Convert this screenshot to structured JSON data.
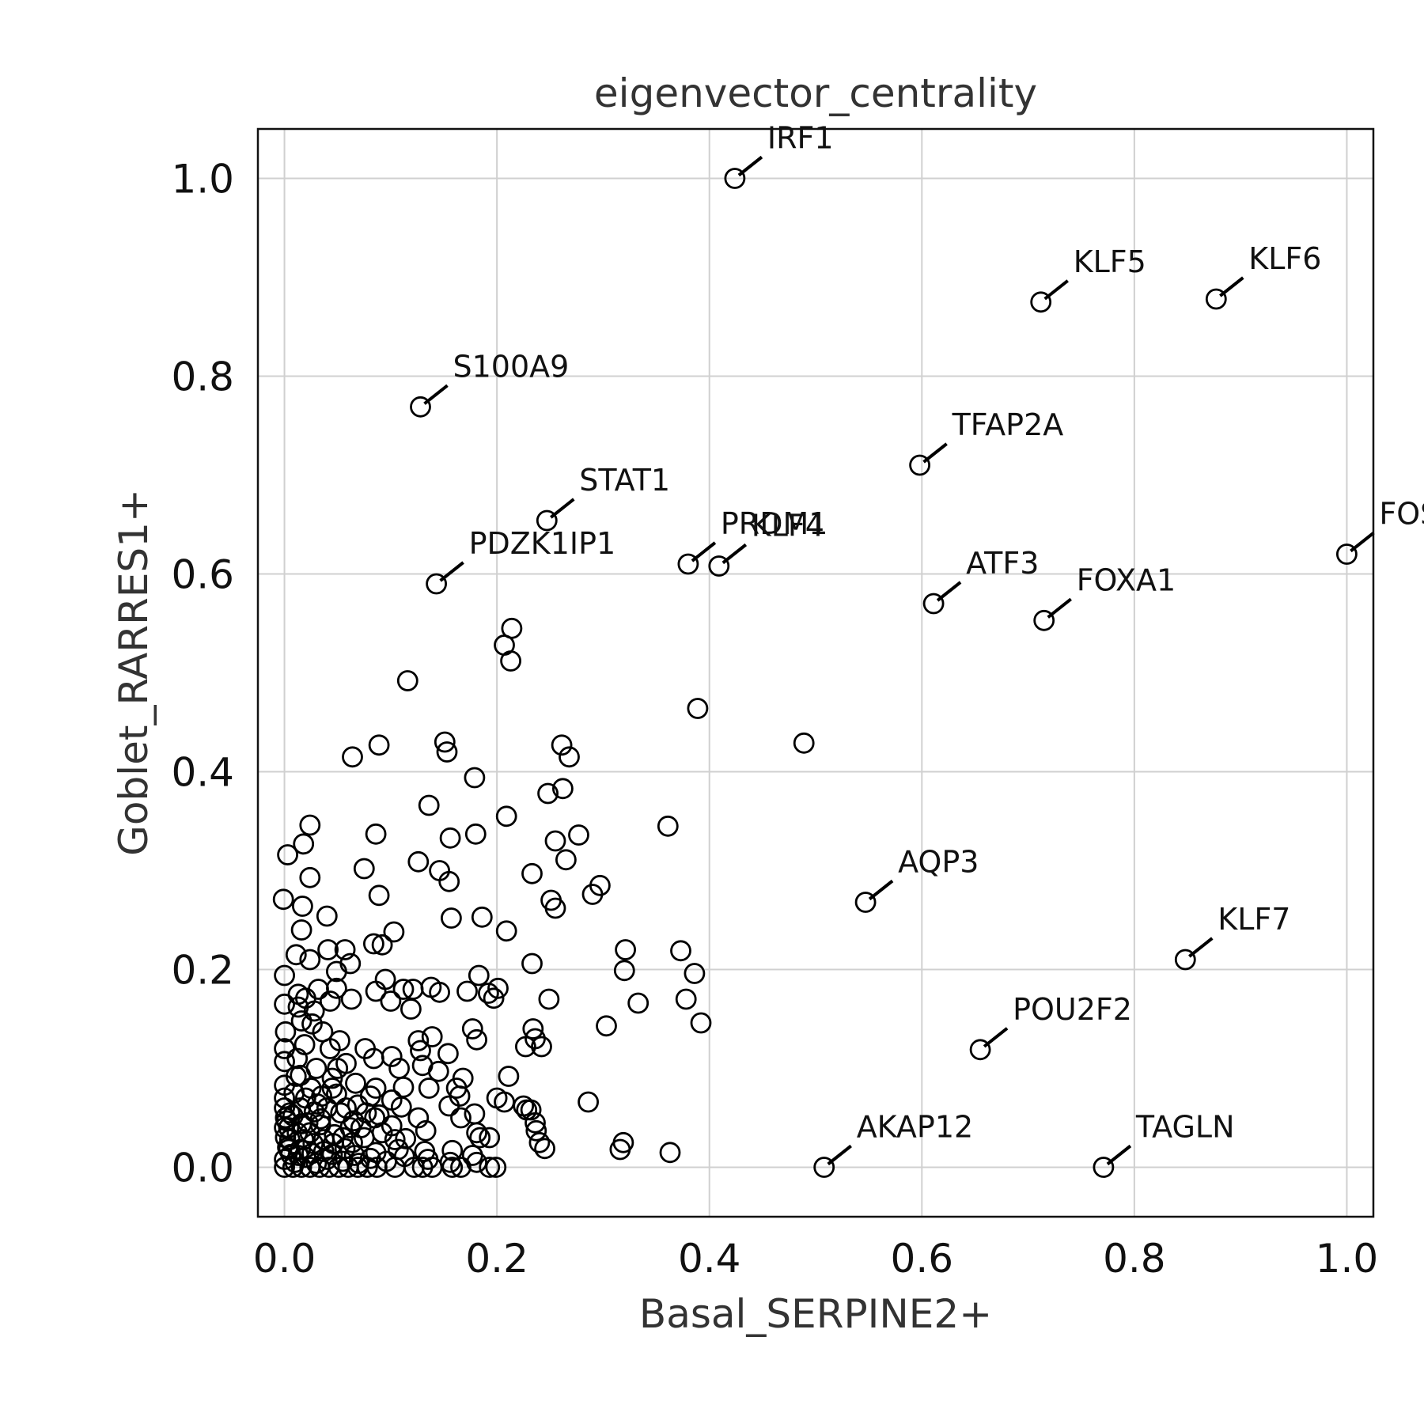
{
  "chart_data": {
    "type": "scatter",
    "title": "eigenvector_centrality",
    "xlabel": "Basal_SERPINE2+",
    "ylabel": "Goblet_RARRES1+",
    "xlim": [
      -0.025,
      1.025
    ],
    "ylim": [
      -0.05,
      1.05
    ],
    "xticks": [
      "0.0",
      "0.2",
      "0.4",
      "0.6",
      "0.8",
      "1.0"
    ],
    "yticks": [
      "0.0",
      "0.2",
      "0.4",
      "0.6",
      "0.8",
      "1.0"
    ],
    "grid": true,
    "marker": "open-circle",
    "labeled_points": [
      {
        "label": "IRF1",
        "x": 0.424,
        "y": 1.0
      },
      {
        "label": "KLF5",
        "x": 0.712,
        "y": 0.875
      },
      {
        "label": "KLF6",
        "x": 0.877,
        "y": 0.878
      },
      {
        "label": "S100A9",
        "x": 0.128,
        "y": 0.769
      },
      {
        "label": "TFAP2A",
        "x": 0.598,
        "y": 0.71
      },
      {
        "label": "STAT1",
        "x": 0.247,
        "y": 0.654
      },
      {
        "label": "FOS",
        "x": 1.0,
        "y": 0.62
      },
      {
        "label": "PRDM1",
        "x": 0.38,
        "y": 0.61
      },
      {
        "label": "KLF4",
        "x": 0.409,
        "y": 0.608
      },
      {
        "label": "PDZK1IP1",
        "x": 0.143,
        "y": 0.59
      },
      {
        "label": "ATF3",
        "x": 0.611,
        "y": 0.57
      },
      {
        "label": "FOXA1",
        "x": 0.715,
        "y": 0.553
      },
      {
        "label": "AQP3",
        "x": 0.547,
        "y": 0.268
      },
      {
        "label": "KLF7",
        "x": 0.848,
        "y": 0.21
      },
      {
        "label": "POU2F2",
        "x": 0.655,
        "y": 0.119
      },
      {
        "label": "AKAP12",
        "x": 0.508,
        "y": 0.0
      },
      {
        "label": "TAGLN",
        "x": 0.771,
        "y": 0.0
      }
    ],
    "points": [
      [
        0.389,
        0.464
      ],
      [
        0.489,
        0.429
      ],
      [
        0.214,
        0.545
      ],
      [
        0.207,
        0.528
      ],
      [
        0.213,
        0.512
      ],
      [
        0.116,
        0.492
      ],
      [
        0.064,
        0.415
      ],
      [
        0.089,
        0.427
      ],
      [
        0.151,
        0.43
      ],
      [
        0.153,
        0.42
      ],
      [
        0.261,
        0.427
      ],
      [
        0.268,
        0.415
      ],
      [
        0.179,
        0.394
      ],
      [
        0.262,
        0.383
      ],
      [
        0.248,
        0.378
      ],
      [
        0.136,
        0.366
      ],
      [
        0.361,
        0.345
      ],
      [
        0.209,
        0.355
      ],
      [
        0.024,
        0.346
      ],
      [
        0.086,
        0.337
      ],
      [
        0.18,
        0.337
      ],
      [
        0.156,
        0.333
      ],
      [
        0.277,
        0.336
      ],
      [
        0.255,
        0.33
      ],
      [
        0.018,
        0.327
      ],
      [
        0.003,
        0.316
      ],
      [
        0.126,
        0.309
      ],
      [
        0.265,
        0.311
      ],
      [
        0.075,
        0.302
      ],
      [
        0.146,
        0.3
      ],
      [
        0.233,
        0.297
      ],
      [
        0.155,
        0.289
      ],
      [
        0.024,
        0.293
      ],
      [
        0.297,
        0.285
      ],
      [
        0.29,
        0.276
      ],
      [
        0.089,
        0.275
      ],
      [
        -0.001,
        0.271
      ],
      [
        0.251,
        0.27
      ],
      [
        0.255,
        0.262
      ],
      [
        0.017,
        0.264
      ],
      [
        0.04,
        0.254
      ],
      [
        0.157,
        0.252
      ],
      [
        0.186,
        0.253
      ],
      [
        0.209,
        0.239
      ],
      [
        0.103,
        0.238
      ],
      [
        0.016,
        0.24
      ],
      [
        0.084,
        0.226
      ],
      [
        0.092,
        0.225
      ],
      [
        0.321,
        0.22
      ],
      [
        0.373,
        0.219
      ],
      [
        0.057,
        0.22
      ],
      [
        0.041,
        0.22
      ],
      [
        0.011,
        0.215
      ],
      [
        0.024,
        0.21
      ],
      [
        0.062,
        0.206
      ],
      [
        0.233,
        0.206
      ],
      [
        0.32,
        0.199
      ],
      [
        0.386,
        0.196
      ],
      [
        0.049,
        0.198
      ],
      [
        0.183,
        0.194
      ],
      [
        0.095,
        0.19
      ],
      [
        0.0,
        0.194
      ],
      [
        0.013,
        0.175
      ],
      [
        0.032,
        0.18
      ],
      [
        0.049,
        0.181
      ],
      [
        0.086,
        0.178
      ],
      [
        0.112,
        0.18
      ],
      [
        0.121,
        0.18
      ],
      [
        0.138,
        0.182
      ],
      [
        0.146,
        0.177
      ],
      [
        0.172,
        0.178
      ],
      [
        0.192,
        0.176
      ],
      [
        0.201,
        0.181
      ],
      [
        0.197,
        0.171
      ],
      [
        0.249,
        0.17
      ],
      [
        0.333,
        0.166
      ],
      [
        0.378,
        0.17
      ],
      [
        0.063,
        0.17
      ],
      [
        0.02,
        0.171
      ],
      [
        0.043,
        0.168
      ],
      [
        0.1,
        0.168
      ],
      [
        0.0,
        0.165
      ],
      [
        0.013,
        0.162
      ],
      [
        0.028,
        0.158
      ],
      [
        0.119,
        0.16
      ],
      [
        0.016,
        0.148
      ],
      [
        0.026,
        0.145
      ],
      [
        0.392,
        0.146
      ],
      [
        0.303,
        0.143
      ],
      [
        0.177,
        0.14
      ],
      [
        0.234,
        0.14
      ],
      [
        0.001,
        0.137
      ],
      [
        0.036,
        0.137
      ],
      [
        0.052,
        0.128
      ],
      [
        0.126,
        0.128
      ],
      [
        0.139,
        0.132
      ],
      [
        0.181,
        0.129
      ],
      [
        0.227,
        0.122
      ],
      [
        0.242,
        0.122
      ],
      [
        0.236,
        0.13
      ],
      [
        0.0,
        0.12
      ],
      [
        0.019,
        0.124
      ],
      [
        0.043,
        0.12
      ],
      [
        0.076,
        0.12
      ],
      [
        0.101,
        0.112
      ],
      [
        0.128,
        0.118
      ],
      [
        0.154,
        0.115
      ],
      [
        0.0,
        0.107
      ],
      [
        0.012,
        0.11
      ],
      [
        0.03,
        0.1
      ],
      [
        0.058,
        0.105
      ],
      [
        0.084,
        0.11
      ],
      [
        0.108,
        0.1
      ],
      [
        0.13,
        0.103
      ],
      [
        0.145,
        0.097
      ],
      [
        0.015,
        0.093
      ],
      [
        0.045,
        0.09
      ],
      [
        0.211,
        0.092
      ],
      [
        0.168,
        0.09
      ],
      [
        0.0,
        0.083
      ],
      [
        0.025,
        0.08
      ],
      [
        0.067,
        0.085
      ],
      [
        0.086,
        0.08
      ],
      [
        0.112,
        0.081
      ],
      [
        0.136,
        0.08
      ],
      [
        0.162,
        0.08
      ],
      [
        0.049,
        0.074
      ],
      [
        0.101,
        0.068
      ],
      [
        0.165,
        0.072
      ],
      [
        0.2,
        0.07
      ],
      [
        0.031,
        0.064
      ],
      [
        0.069,
        0.063
      ],
      [
        0.286,
        0.066
      ],
      [
        0.207,
        0.066
      ],
      [
        0.225,
        0.062
      ],
      [
        0.228,
        0.058
      ],
      [
        0.232,
        0.058
      ],
      [
        0.11,
        0.061
      ],
      [
        0.155,
        0.062
      ],
      [
        0.005,
        0.055
      ],
      [
        0.053,
        0.055
      ],
      [
        0.089,
        0.053
      ],
      [
        0.126,
        0.05
      ],
      [
        0.166,
        0.05
      ],
      [
        0.179,
        0.054
      ],
      [
        0.236,
        0.045
      ],
      [
        0.002,
        0.047
      ],
      [
        0.022,
        0.045
      ],
      [
        0.034,
        0.049
      ],
      [
        0.065,
        0.047
      ],
      [
        0.101,
        0.042
      ],
      [
        0.133,
        0.037
      ],
      [
        0.181,
        0.035
      ],
      [
        0.237,
        0.037
      ],
      [
        0.004,
        0.04
      ],
      [
        0.024,
        0.035
      ],
      [
        0.047,
        0.033
      ],
      [
        0.075,
        0.03
      ],
      [
        0.104,
        0.028
      ],
      [
        0.114,
        0.029
      ],
      [
        0.184,
        0.03
      ],
      [
        0.193,
        0.03
      ],
      [
        0.24,
        0.025
      ],
      [
        0.319,
        0.025
      ],
      [
        0.003,
        0.02
      ],
      [
        0.015,
        0.018
      ],
      [
        0.037,
        0.016
      ],
      [
        0.057,
        0.019
      ],
      [
        0.086,
        0.015
      ],
      [
        0.107,
        0.018
      ],
      [
        0.132,
        0.016
      ],
      [
        0.158,
        0.017
      ],
      [
        0.245,
        0.019
      ],
      [
        0.316,
        0.018
      ],
      [
        0.363,
        0.015
      ],
      [
        0.0,
        0.008
      ],
      [
        0.01,
        0.005
      ],
      [
        0.02,
        0.01
      ],
      [
        0.03,
        0.004
      ],
      [
        0.04,
        0.008
      ],
      [
        0.055,
        0.006
      ],
      [
        0.07,
        0.004
      ],
      [
        0.081,
        0.009
      ],
      [
        0.096,
        0.006
      ],
      [
        0.113,
        0.011
      ],
      [
        0.135,
        0.008
      ],
      [
        0.156,
        0.005
      ],
      [
        0.177,
        0.012
      ],
      [
        0.181,
        0.005
      ],
      [
        0.0,
        0.0
      ],
      [
        0.008,
        0.0
      ],
      [
        0.016,
        0.0
      ],
      [
        0.024,
        0.0
      ],
      [
        0.033,
        0.0
      ],
      [
        0.042,
        0.0
      ],
      [
        0.051,
        0.0
      ],
      [
        0.06,
        0.0
      ],
      [
        0.069,
        0.0
      ],
      [
        0.078,
        0.0
      ],
      [
        0.087,
        0.0
      ],
      [
        0.104,
        0.0
      ],
      [
        0.122,
        0.0
      ],
      [
        0.13,
        0.0
      ],
      [
        0.139,
        0.0
      ],
      [
        0.158,
        0.0
      ],
      [
        0.166,
        0.0
      ],
      [
        0.193,
        0.0
      ],
      [
        0.199,
        0.0
      ],
      [
        0.005,
        0.028
      ],
      [
        0.012,
        0.035
      ],
      [
        0.018,
        0.028
      ],
      [
        0.027,
        0.024
      ],
      [
        0.037,
        0.028
      ],
      [
        0.046,
        0.024
      ],
      [
        0.055,
        0.03
      ],
      [
        0.064,
        0.025
      ],
      [
        0.008,
        0.052
      ],
      [
        0.015,
        0.06
      ],
      [
        0.028,
        0.056
      ],
      [
        0.04,
        0.06
      ],
      [
        0.058,
        0.06
      ],
      [
        0.077,
        0.055
      ],
      [
        0.009,
        0.075
      ],
      [
        0.02,
        0.07
      ],
      [
        0.035,
        0.072
      ],
      [
        0.045,
        0.08
      ],
      [
        0.081,
        0.072
      ],
      [
        0.011,
        0.092
      ],
      [
        0.05,
        0.1
      ],
      [
        0.006,
        0.013
      ],
      [
        0.013,
        0.012
      ],
      [
        0.026,
        0.014
      ],
      [
        0.045,
        0.013
      ],
      [
        0.066,
        0.012
      ],
      [
        0.001,
        0.03
      ],
      [
        0.0,
        0.04
      ],
      [
        0.001,
        0.05
      ],
      [
        0.0,
        0.06
      ],
      [
        0.0,
        0.07
      ],
      [
        0.004,
        0.018
      ],
      [
        0.034,
        0.043
      ],
      [
        0.016,
        0.044
      ],
      [
        0.062,
        0.04
      ],
      [
        0.092,
        0.035
      ],
      [
        0.085,
        0.05
      ],
      [
        0.072,
        0.04
      ]
    ]
  }
}
